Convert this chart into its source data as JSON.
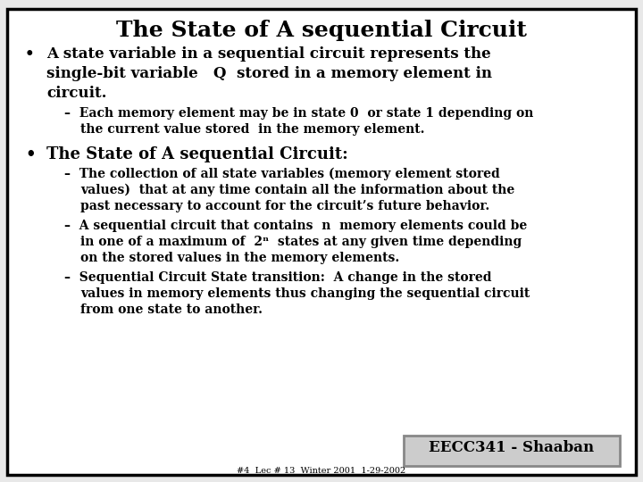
{
  "title": "The State of A sequential Circuit",
  "background_color": "#e8e8e8",
  "border_color": "#000000",
  "title_color": "#000000",
  "text_color": "#000000",
  "footer_label": "EECC341 - Shaaban",
  "footer_sub": "#4  Lec # 13  Winter 2001  1-29-2002",
  "title_fontsize": 18,
  "bullet_fontsize": 12,
  "sub_fontsize": 10,
  "footer_fontsize": 12,
  "footer_sub_fontsize": 7
}
